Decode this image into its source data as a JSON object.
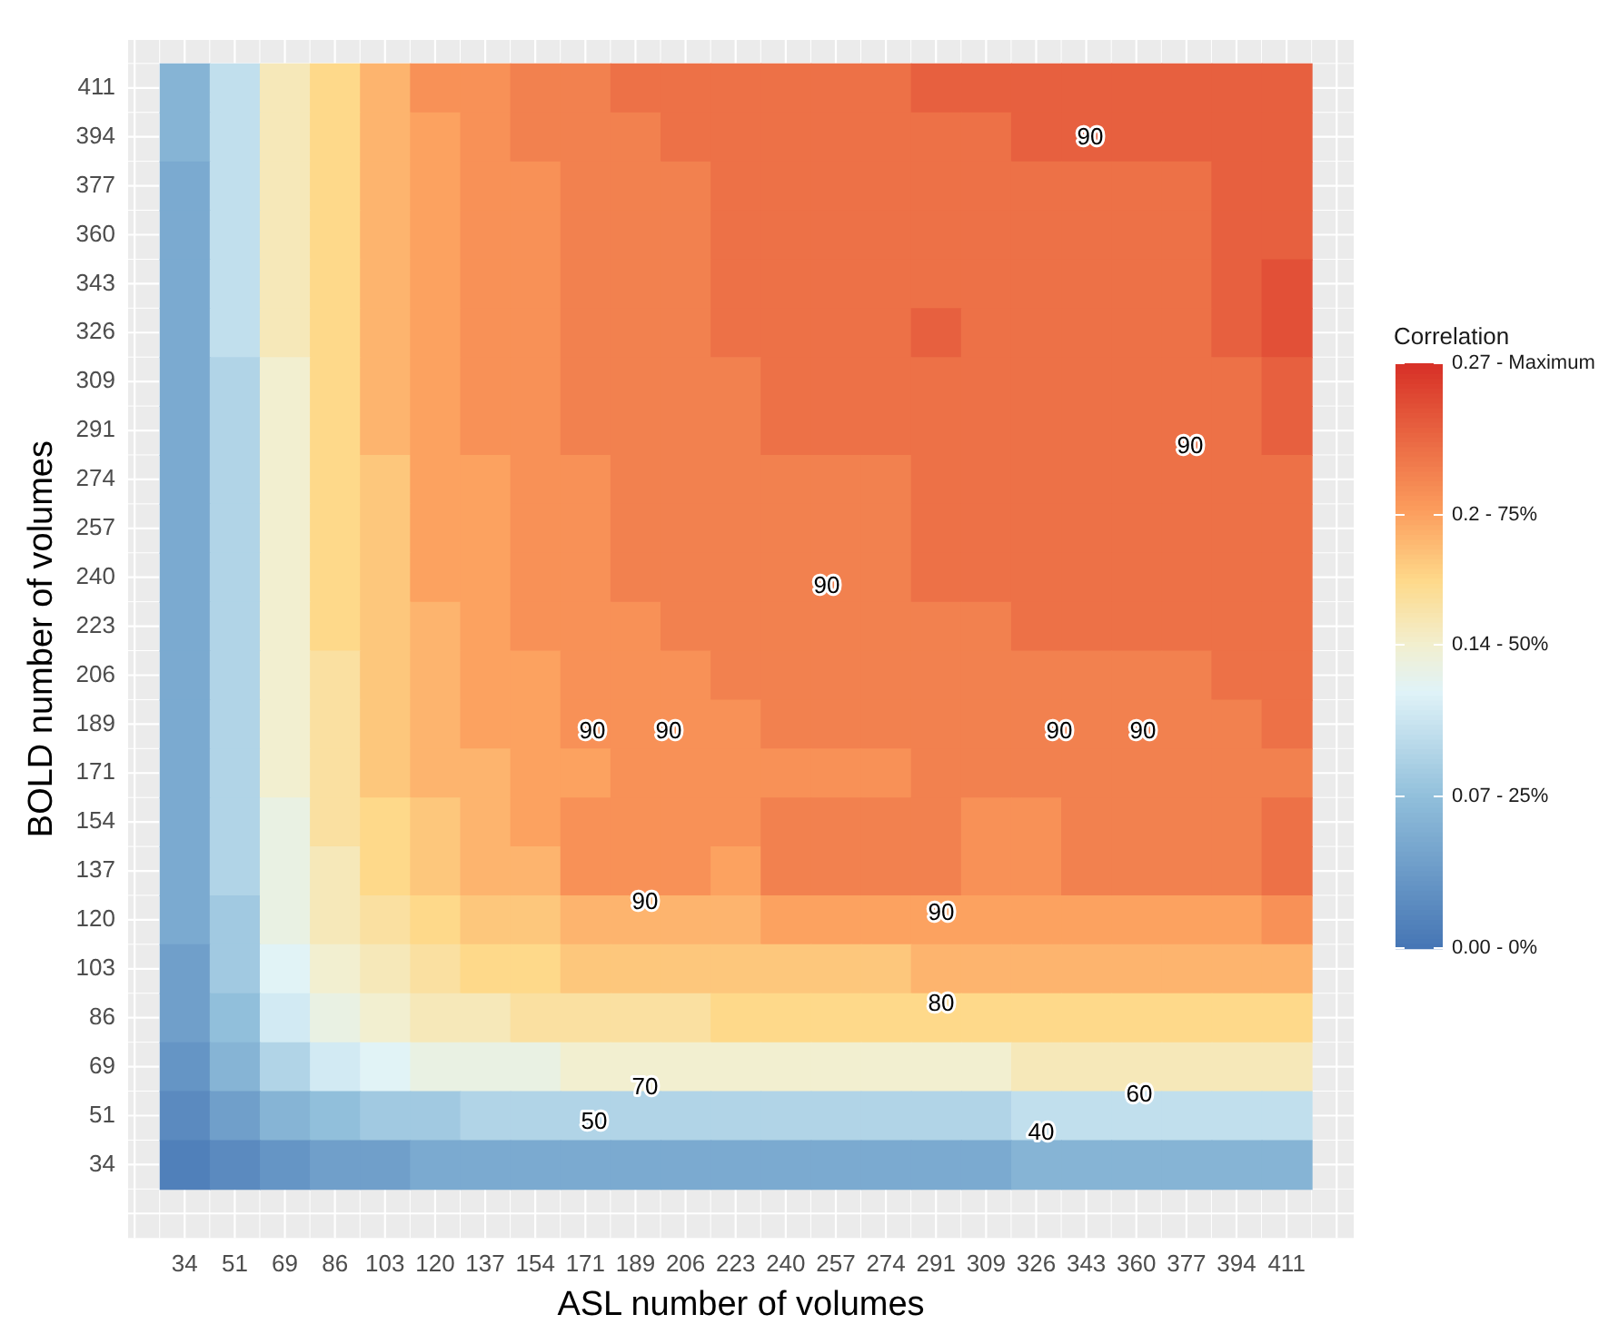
{
  "chart_data": {
    "type": "heatmap",
    "xlabel": "ASL number of volumes",
    "ylabel": "BOLD number of volumes",
    "clabel": "Correlation",
    "categories": [
      "34",
      "51",
      "69",
      "86",
      "103",
      "120",
      "137",
      "154",
      "171",
      "189",
      "206",
      "223",
      "240",
      "257",
      "274",
      "291",
      "309",
      "326",
      "343",
      "360",
      "377",
      "394",
      "411"
    ],
    "y_categories": [
      "411",
      "394",
      "377",
      "360",
      "343",
      "326",
      "309",
      "291",
      "274",
      "257",
      "240",
      "223",
      "206",
      "189",
      "171",
      "154",
      "137",
      "120",
      "103",
      "86",
      "69",
      "51",
      "34"
    ],
    "cells": [
      [
        0.06,
        0.1,
        0.15,
        0.17,
        0.19,
        0.21,
        0.21,
        0.22,
        0.22,
        0.23,
        0.23,
        0.23,
        0.23,
        0.23,
        0.23,
        0.24,
        0.24,
        0.24,
        0.24,
        0.24,
        0.24,
        0.24,
        0.24
      ],
      [
        0.06,
        0.1,
        0.15,
        0.17,
        0.19,
        0.2,
        0.21,
        0.22,
        0.22,
        0.22,
        0.23,
        0.23,
        0.23,
        0.23,
        0.23,
        0.23,
        0.23,
        0.24,
        0.24,
        0.24,
        0.24,
        0.24,
        0.24
      ],
      [
        0.05,
        0.1,
        0.15,
        0.17,
        0.19,
        0.2,
        0.21,
        0.21,
        0.22,
        0.22,
        0.22,
        0.23,
        0.23,
        0.23,
        0.23,
        0.23,
        0.23,
        0.23,
        0.23,
        0.23,
        0.23,
        0.24,
        0.24
      ],
      [
        0.05,
        0.1,
        0.15,
        0.17,
        0.19,
        0.2,
        0.21,
        0.21,
        0.22,
        0.22,
        0.22,
        0.23,
        0.23,
        0.23,
        0.23,
        0.23,
        0.23,
        0.23,
        0.23,
        0.23,
        0.23,
        0.24,
        0.24
      ],
      [
        0.05,
        0.1,
        0.15,
        0.17,
        0.19,
        0.2,
        0.21,
        0.21,
        0.22,
        0.22,
        0.22,
        0.23,
        0.23,
        0.23,
        0.23,
        0.23,
        0.23,
        0.23,
        0.23,
        0.23,
        0.23,
        0.24,
        0.25
      ],
      [
        0.05,
        0.1,
        0.15,
        0.17,
        0.19,
        0.2,
        0.21,
        0.21,
        0.22,
        0.22,
        0.22,
        0.23,
        0.23,
        0.23,
        0.23,
        0.24,
        0.23,
        0.23,
        0.23,
        0.23,
        0.23,
        0.24,
        0.25
      ],
      [
        0.05,
        0.09,
        0.14,
        0.17,
        0.19,
        0.2,
        0.21,
        0.21,
        0.22,
        0.22,
        0.22,
        0.22,
        0.23,
        0.23,
        0.23,
        0.23,
        0.23,
        0.23,
        0.23,
        0.23,
        0.23,
        0.23,
        0.24
      ],
      [
        0.05,
        0.09,
        0.14,
        0.17,
        0.19,
        0.2,
        0.21,
        0.21,
        0.22,
        0.22,
        0.22,
        0.22,
        0.23,
        0.23,
        0.23,
        0.23,
        0.23,
        0.23,
        0.23,
        0.23,
        0.23,
        0.23,
        0.24
      ],
      [
        0.05,
        0.09,
        0.14,
        0.17,
        0.18,
        0.2,
        0.2,
        0.21,
        0.21,
        0.22,
        0.22,
        0.22,
        0.22,
        0.22,
        0.22,
        0.23,
        0.23,
        0.23,
        0.23,
        0.23,
        0.23,
        0.23,
        0.23
      ],
      [
        0.05,
        0.09,
        0.14,
        0.17,
        0.18,
        0.2,
        0.2,
        0.21,
        0.21,
        0.22,
        0.22,
        0.22,
        0.22,
        0.22,
        0.22,
        0.23,
        0.23,
        0.23,
        0.23,
        0.23,
        0.23,
        0.23,
        0.23
      ],
      [
        0.05,
        0.09,
        0.14,
        0.17,
        0.18,
        0.2,
        0.2,
        0.21,
        0.21,
        0.22,
        0.22,
        0.22,
        0.22,
        0.22,
        0.22,
        0.23,
        0.23,
        0.23,
        0.23,
        0.23,
        0.23,
        0.23,
        0.23
      ],
      [
        0.05,
        0.09,
        0.14,
        0.17,
        0.18,
        0.19,
        0.2,
        0.21,
        0.21,
        0.21,
        0.22,
        0.22,
        0.22,
        0.22,
        0.22,
        0.22,
        0.22,
        0.23,
        0.23,
        0.23,
        0.23,
        0.23,
        0.23
      ],
      [
        0.05,
        0.09,
        0.14,
        0.16,
        0.18,
        0.19,
        0.2,
        0.2,
        0.21,
        0.21,
        0.21,
        0.22,
        0.22,
        0.22,
        0.22,
        0.22,
        0.22,
        0.22,
        0.22,
        0.22,
        0.22,
        0.23,
        0.23
      ],
      [
        0.05,
        0.09,
        0.14,
        0.16,
        0.18,
        0.19,
        0.2,
        0.2,
        0.21,
        0.21,
        0.21,
        0.21,
        0.22,
        0.22,
        0.22,
        0.22,
        0.22,
        0.22,
        0.22,
        0.22,
        0.22,
        0.22,
        0.23
      ],
      [
        0.05,
        0.09,
        0.14,
        0.16,
        0.18,
        0.19,
        0.19,
        0.2,
        0.2,
        0.21,
        0.21,
        0.21,
        0.21,
        0.21,
        0.21,
        0.22,
        0.22,
        0.22,
        0.22,
        0.22,
        0.22,
        0.22,
        0.22
      ],
      [
        0.05,
        0.09,
        0.13,
        0.16,
        0.17,
        0.18,
        0.19,
        0.2,
        0.21,
        0.21,
        0.21,
        0.21,
        0.22,
        0.22,
        0.22,
        0.22,
        0.21,
        0.21,
        0.22,
        0.22,
        0.22,
        0.22,
        0.23
      ],
      [
        0.05,
        0.09,
        0.13,
        0.15,
        0.17,
        0.18,
        0.19,
        0.19,
        0.21,
        0.21,
        0.21,
        0.2,
        0.22,
        0.22,
        0.22,
        0.22,
        0.21,
        0.21,
        0.22,
        0.22,
        0.22,
        0.22,
        0.23
      ],
      [
        0.05,
        0.08,
        0.13,
        0.15,
        0.16,
        0.17,
        0.18,
        0.18,
        0.19,
        0.19,
        0.19,
        0.19,
        0.2,
        0.2,
        0.2,
        0.2,
        0.2,
        0.2,
        0.2,
        0.2,
        0.2,
        0.2,
        0.21
      ],
      [
        0.04,
        0.08,
        0.12,
        0.14,
        0.15,
        0.16,
        0.17,
        0.17,
        0.18,
        0.18,
        0.18,
        0.18,
        0.18,
        0.18,
        0.18,
        0.19,
        0.19,
        0.19,
        0.19,
        0.19,
        0.19,
        0.19,
        0.19
      ],
      [
        0.04,
        0.07,
        0.11,
        0.13,
        0.14,
        0.15,
        0.15,
        0.16,
        0.16,
        0.16,
        0.16,
        0.17,
        0.17,
        0.17,
        0.17,
        0.17,
        0.17,
        0.17,
        0.17,
        0.17,
        0.17,
        0.17,
        0.17
      ],
      [
        0.03,
        0.06,
        0.09,
        0.11,
        0.12,
        0.13,
        0.13,
        0.13,
        0.14,
        0.14,
        0.14,
        0.14,
        0.14,
        0.14,
        0.14,
        0.14,
        0.14,
        0.15,
        0.15,
        0.15,
        0.15,
        0.15,
        0.15
      ],
      [
        0.02,
        0.04,
        0.06,
        0.07,
        0.08,
        0.08,
        0.09,
        0.09,
        0.09,
        0.09,
        0.09,
        0.09,
        0.09,
        0.09,
        0.09,
        0.09,
        0.09,
        0.1,
        0.1,
        0.1,
        0.1,
        0.1,
        0.1
      ],
      [
        0.01,
        0.02,
        0.03,
        0.04,
        0.04,
        0.05,
        0.05,
        0.05,
        0.05,
        0.05,
        0.05,
        0.05,
        0.05,
        0.05,
        0.05,
        0.05,
        0.05,
        0.06,
        0.06,
        0.06,
        0.06,
        0.06,
        0.06
      ]
    ],
    "clim": [
      0,
      0.27
    ],
    "cticks": [
      {
        "value": 0,
        "label": "0.00 - 0%"
      },
      {
        "value": 0.07,
        "label": "0.07 - 25%"
      },
      {
        "value": 0.14,
        "label": "0.14 - 50%"
      },
      {
        "value": 0.2,
        "label": "0.2 - 75%"
      },
      {
        "value": 0.27,
        "label": "0.27 - Maximum"
      }
    ],
    "annotations": [
      "90",
      "90",
      "90",
      "90",
      "90",
      "90",
      "90",
      "90",
      "90",
      "80",
      "70",
      "60",
      "50",
      "40"
    ],
    "grid": true
  }
}
